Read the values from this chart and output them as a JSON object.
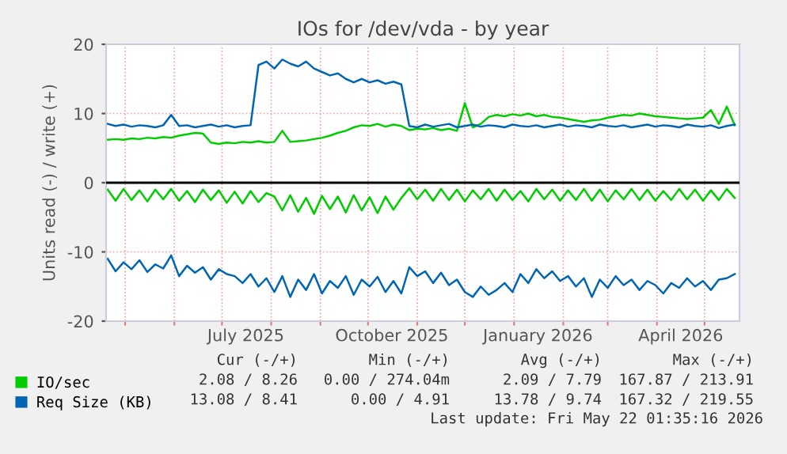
{
  "chart_data": {
    "type": "line",
    "title": "IOs for /dev/vda - by year",
    "ylabel": "Units read (-) / write (+)",
    "x": [
      "2025-04-20",
      "2025-04-25",
      "2025-04-30",
      "2025-05-05",
      "2025-05-10",
      "2025-05-15",
      "2025-05-20",
      "2025-05-25",
      "2025-05-30",
      "2025-06-04",
      "2025-06-09",
      "2025-06-14",
      "2025-06-19",
      "2025-06-24",
      "2025-06-29",
      "2025-07-04",
      "2025-07-09",
      "2025-07-14",
      "2025-07-19",
      "2025-07-24",
      "2025-07-29",
      "2025-08-03",
      "2025-08-08",
      "2025-08-13",
      "2025-08-18",
      "2025-08-23",
      "2025-08-28",
      "2025-09-02",
      "2025-09-07",
      "2025-09-12",
      "2025-09-17",
      "2025-09-22",
      "2025-09-27",
      "2025-10-02",
      "2025-10-07",
      "2025-10-12",
      "2025-10-17",
      "2025-10-22",
      "2025-10-27",
      "2025-11-01",
      "2025-11-06",
      "2025-11-11",
      "2025-11-16",
      "2025-11-21",
      "2025-11-26",
      "2025-12-01",
      "2025-12-06",
      "2025-12-11",
      "2025-12-16",
      "2025-12-21",
      "2025-12-26",
      "2025-12-31",
      "2026-01-05",
      "2026-01-10",
      "2026-01-15",
      "2026-01-20",
      "2026-01-25",
      "2026-01-30",
      "2026-02-04",
      "2026-02-09",
      "2026-02-14",
      "2026-02-19",
      "2026-02-24",
      "2026-03-01",
      "2026-03-06",
      "2026-03-11",
      "2026-03-16",
      "2026-03-21",
      "2026-03-26",
      "2026-03-31",
      "2026-04-05",
      "2026-04-10",
      "2026-04-15",
      "2026-04-20",
      "2026-04-25",
      "2026-04-30",
      "2026-05-05",
      "2026-05-10",
      "2026-05-15",
      "2026-05-20"
    ],
    "series": [
      {
        "name": "IO/sec",
        "color": "#00cc00",
        "values": [
          6.2,
          6.3,
          6.2,
          6.4,
          6.3,
          6.5,
          6.4,
          6.6,
          6.5,
          6.8,
          7.0,
          7.2,
          7.1,
          5.8,
          5.6,
          5.8,
          5.7,
          5.9,
          5.8,
          6.0,
          5.8,
          5.9,
          7.5,
          5.9,
          6.0,
          6.1,
          6.3,
          6.5,
          6.8,
          7.2,
          7.5,
          8.0,
          8.3,
          8.2,
          8.5,
          8.1,
          8.4,
          8.2,
          7.6,
          7.8,
          7.7,
          7.9,
          7.6,
          7.8,
          7.5,
          11.5,
          8.0,
          8.5,
          9.5,
          9.8,
          9.6,
          9.9,
          9.7,
          10.0,
          9.6,
          9.8,
          9.5,
          9.4,
          9.2,
          9.0,
          8.8,
          9.0,
          9.1,
          9.4,
          9.6,
          9.8,
          9.7,
          10.0,
          9.8,
          9.6,
          9.5,
          9.4,
          9.3,
          9.2,
          9.3,
          9.4,
          10.5,
          8.5,
          11.0,
          8.3
        ]
      },
      {
        "color": "#00cc00",
        "values": [
          -1.0,
          -2.6,
          -0.9,
          -2.5,
          -1.1,
          -2.7,
          -1.0,
          -2.4,
          -0.9,
          -2.6,
          -1.2,
          -2.8,
          -1.0,
          -2.5,
          -1.1,
          -2.9,
          -1.3,
          -3.0,
          -1.2,
          -2.8,
          -1.5,
          -2.0,
          -4.0,
          -1.8,
          -4.2,
          -2.2,
          -4.5,
          -1.9,
          -3.8,
          -2.0,
          -4.3,
          -1.8,
          -4.0,
          -2.1,
          -4.4,
          -2.0,
          -3.9,
          -2.2,
          -0.8,
          -2.4,
          -1.0,
          -2.6,
          -0.9,
          -2.5,
          -1.0,
          -2.7,
          -1.1,
          -2.4,
          -0.9,
          -2.6,
          -1.0,
          -2.5,
          -1.2,
          -2.7,
          -0.9,
          -2.4,
          -1.0,
          -2.6,
          -1.1,
          -2.5,
          -0.9,
          -2.6,
          -1.0,
          -2.7,
          -1.1,
          -2.4,
          -0.9,
          -2.5,
          -1.0,
          -2.6,
          -1.2,
          -2.5,
          -0.9,
          -2.4,
          -1.0,
          -2.6,
          -1.1,
          -2.5,
          -0.9,
          -2.2
        ]
      },
      {
        "name": "Req Size (KB)",
        "color": "#0066b3",
        "values": [
          8.5,
          8.2,
          8.4,
          8.1,
          8.3,
          8.2,
          8.0,
          8.3,
          9.8,
          8.2,
          8.3,
          8.0,
          8.2,
          8.4,
          8.1,
          8.3,
          8.0,
          8.2,
          8.3,
          17.0,
          17.5,
          16.5,
          17.8,
          17.2,
          16.8,
          17.5,
          16.5,
          16.0,
          15.5,
          15.8,
          15.0,
          14.5,
          15.0,
          14.5,
          14.8,
          14.3,
          14.6,
          14.2,
          8.2,
          8.0,
          8.4,
          8.1,
          8.3,
          8.5,
          8.0,
          8.2,
          8.4,
          8.1,
          8.3,
          8.2,
          8.0,
          8.4,
          8.2,
          8.1,
          8.3,
          8.0,
          8.2,
          8.4,
          8.1,
          8.3,
          8.2,
          8.0,
          8.4,
          8.2,
          8.1,
          8.3,
          8.0,
          8.2,
          8.4,
          8.1,
          8.3,
          8.2,
          8.0,
          8.4,
          8.2,
          8.1,
          8.3,
          7.9,
          8.2,
          8.4
        ]
      },
      {
        "color": "#0066b3",
        "values": [
          -11.0,
          -12.8,
          -11.5,
          -12.5,
          -11.2,
          -12.9,
          -11.8,
          -12.4,
          -10.5,
          -13.5,
          -12.0,
          -13.0,
          -12.2,
          -14.0,
          -12.5,
          -13.2,
          -13.5,
          -14.5,
          -13.2,
          -15.0,
          -13.8,
          -15.8,
          -13.5,
          -16.5,
          -14.0,
          -15.5,
          -13.2,
          -16.0,
          -14.2,
          -15.2,
          -13.5,
          -16.2,
          -14.0,
          -15.0,
          -13.6,
          -15.8,
          -14.2,
          -16.0,
          -12.2,
          -13.5,
          -12.8,
          -14.5,
          -13.0,
          -14.8,
          -14.0,
          -15.8,
          -16.5,
          -15.0,
          -16.2,
          -15.5,
          -14.5,
          -15.8,
          -13.2,
          -14.5,
          -12.5,
          -13.8,
          -12.8,
          -14.2,
          -13.5,
          -15.0,
          -13.8,
          -16.5,
          -14.0,
          -15.2,
          -13.5,
          -14.8,
          -14.0,
          -15.5,
          -14.2,
          -14.8,
          -16.0,
          -14.5,
          -15.2,
          -13.8,
          -15.0,
          -14.2,
          -15.5,
          -14.0,
          -13.8,
          -13.2
        ]
      }
    ],
    "xlim": [
      "2025-04-19",
      "2026-05-23"
    ],
    "xticks": [
      {
        "value": "2025-05-01",
        "label": null
      },
      {
        "value": "2025-06-01",
        "label": null
      },
      {
        "value": "2025-07-01",
        "label": null
      },
      {
        "value": "2025-08-01",
        "label": null
      },
      {
        "value": "2025-09-01",
        "label": null
      },
      {
        "value": "2025-10-01",
        "label": null
      },
      {
        "value": "2025-11-01",
        "label": null
      },
      {
        "value": "2025-12-01",
        "label": null
      },
      {
        "value": "2026-01-01",
        "label": null
      },
      {
        "value": "2026-02-01",
        "label": null
      },
      {
        "value": "2026-03-01",
        "label": null
      },
      {
        "value": "2026-04-01",
        "label": null
      },
      {
        "value": "2026-05-01",
        "label": null
      },
      {
        "value": "2025-07-16",
        "label": "July 2025"
      },
      {
        "value": "2025-10-16",
        "label": "October 2025"
      },
      {
        "value": "2026-01-16",
        "label": "January 2026"
      },
      {
        "value": "2026-04-16",
        "label": "April 2026"
      }
    ],
    "ylim": [
      -20,
      20
    ],
    "yticks": [
      -20,
      -10,
      0,
      10,
      20
    ],
    "grid": true,
    "legend": "bottom left",
    "ref_lines": [
      {
        "axis": "y",
        "value": 0,
        "color": "#000000"
      }
    ],
    "annotations": [
      "Cur (-/+)",
      "Min (-/+)",
      "Avg (-/+)",
      "Max (-/+)",
      "2.08 / 8.26",
      "0.00 / 274.04m",
      "2.09 / 7.79",
      "167.87 / 213.91",
      "13.08 / 8.41",
      "0.00 / 4.91",
      "13.78 / 9.74",
      "167.32 / 219.55",
      "Last update: Fri May 22 01:35:16 2026"
    ]
  }
}
